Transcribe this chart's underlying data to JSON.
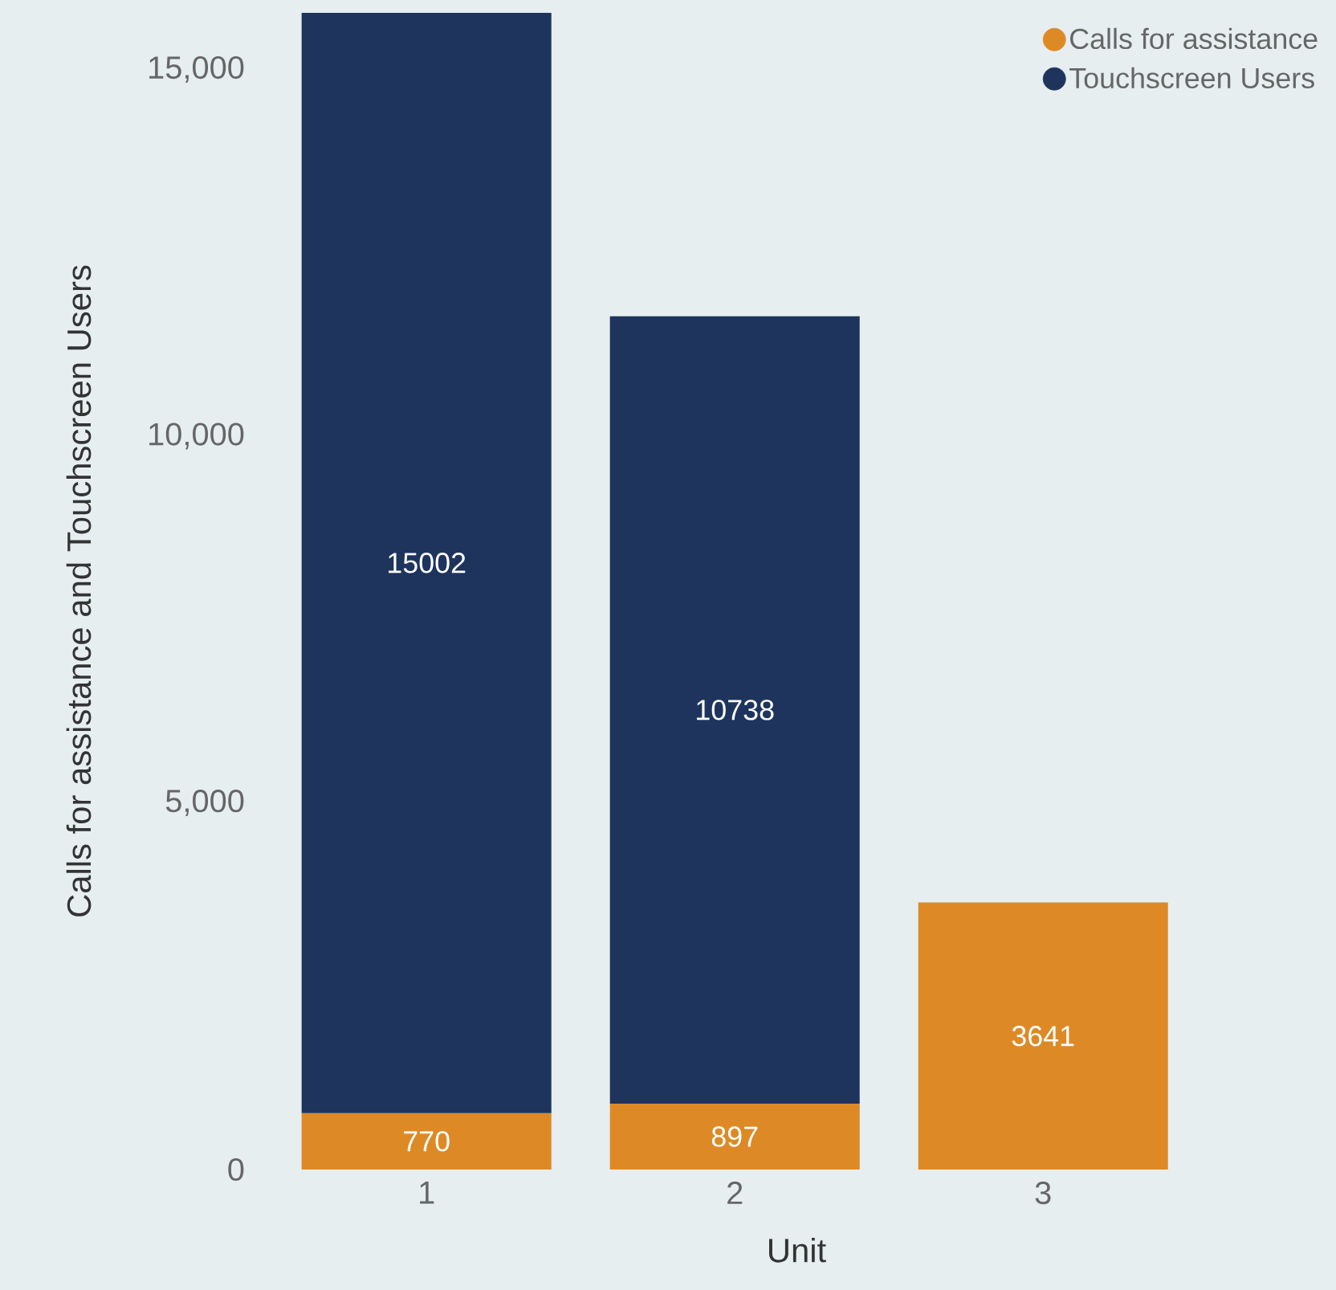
{
  "chart_data": {
    "type": "bar",
    "stacked": true,
    "xlabel": "Unit",
    "ylabel": "Calls for assistance and Touchscreen Users",
    "categories": [
      "1",
      "2",
      "3"
    ],
    "series": [
      {
        "name": "Calls for assistance",
        "color": "#dd8a26",
        "values": [
          770,
          897,
          3641
        ],
        "value_labels": [
          "770",
          "897",
          "3641"
        ]
      },
      {
        "name": "Touchscreen Users",
        "color": "#1e345c",
        "values": [
          15002,
          10738,
          null
        ],
        "value_labels": [
          "15002",
          "10738",
          null
        ]
      }
    ],
    "ylim": [
      0,
      15772
    ],
    "yticks": [
      {
        "value": 0,
        "label": "0"
      },
      {
        "value": 5000,
        "label": "5,000"
      },
      {
        "value": 10000,
        "label": "10,000"
      },
      {
        "value": 15000,
        "label": "15,000"
      }
    ],
    "legend": "top right"
  }
}
